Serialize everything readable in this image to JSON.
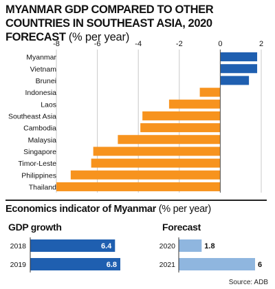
{
  "title_main": "MYANMAR GDP COMPARED TO OTHER COUNTRIES IN SOUTHEAST ASIA, 2020 FORECAST",
  "title_unit": "(% per year)",
  "colors": {
    "positive": "#1f5fb0",
    "negative": "#f7931e",
    "gdp_bar": "#1f5fb0",
    "forecast_bar": "#8fb6df",
    "text": "#111111"
  },
  "chart_data": [
    {
      "type": "bar",
      "orientation": "horizontal",
      "categories": [
        "Myanmar",
        "Vietnam",
        "Brunei",
        "Indonesia",
        "Laos",
        "Southeast Asia",
        "Cambodia",
        "Malaysia",
        "Singapore",
        "Timor-Leste",
        "Philippines",
        "Thailand"
      ],
      "values": [
        1.8,
        1.8,
        1.4,
        -1.0,
        -2.5,
        -3.8,
        -3.9,
        -5.0,
        -6.2,
        -6.3,
        -7.3,
        -8.0
      ],
      "xlim": [
        -8,
        2
      ],
      "xticks": [
        -8,
        -6,
        -4,
        -2,
        0,
        2
      ],
      "grid": true
    },
    {
      "type": "bar",
      "orientation": "horizontal",
      "title": "GDP growth",
      "categories": [
        "2018",
        "2019"
      ],
      "values": [
        6.4,
        6.8
      ],
      "labels": [
        "6.4",
        "6.8"
      ]
    },
    {
      "type": "bar",
      "orientation": "horizontal",
      "title": "Forecast",
      "categories": [
        "2020",
        "2021"
      ],
      "values": [
        1.8,
        6
      ],
      "labels": [
        "1.8",
        "6"
      ]
    }
  ],
  "section_title": "Economics indicator of Myanmar",
  "section_unit": "(% per year)",
  "source": "Source: ADB"
}
